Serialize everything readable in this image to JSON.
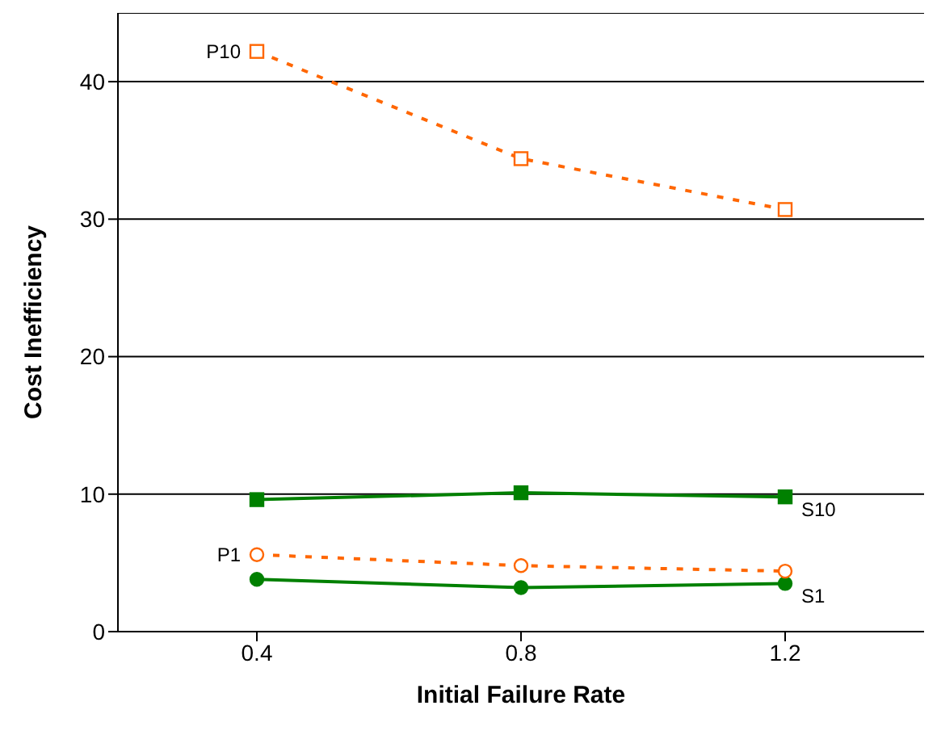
{
  "chart_data": {
    "type": "line",
    "xlabel": "Initial Failure Rate",
    "ylabel": "Cost Inefficiency",
    "categories": [
      "0.4",
      "0.8",
      "1.2"
    ],
    "series": [
      {
        "name": "P10",
        "color": "#ff6600",
        "values": [
          42.2,
          34.4,
          30.7
        ],
        "marker": "square",
        "line_style": "dashed"
      },
      {
        "name": "S10",
        "color": "#008000",
        "values": [
          9.6,
          10.1,
          9.8
        ],
        "marker": "square",
        "line_style": "solid"
      },
      {
        "name": "P1",
        "color": "#ff6600",
        "values": [
          5.6,
          4.8,
          4.4
        ],
        "marker": "circle",
        "line_style": "dashed"
      },
      {
        "name": "S1",
        "color": "#008000",
        "values": [
          3.8,
          3.2,
          3.5
        ],
        "marker": "circle",
        "line_style": "solid"
      }
    ],
    "ylim": [
      0,
      45
    ],
    "yticks": [
      0,
      10,
      20,
      30,
      40
    ],
    "grid": "y",
    "legend": false
  }
}
